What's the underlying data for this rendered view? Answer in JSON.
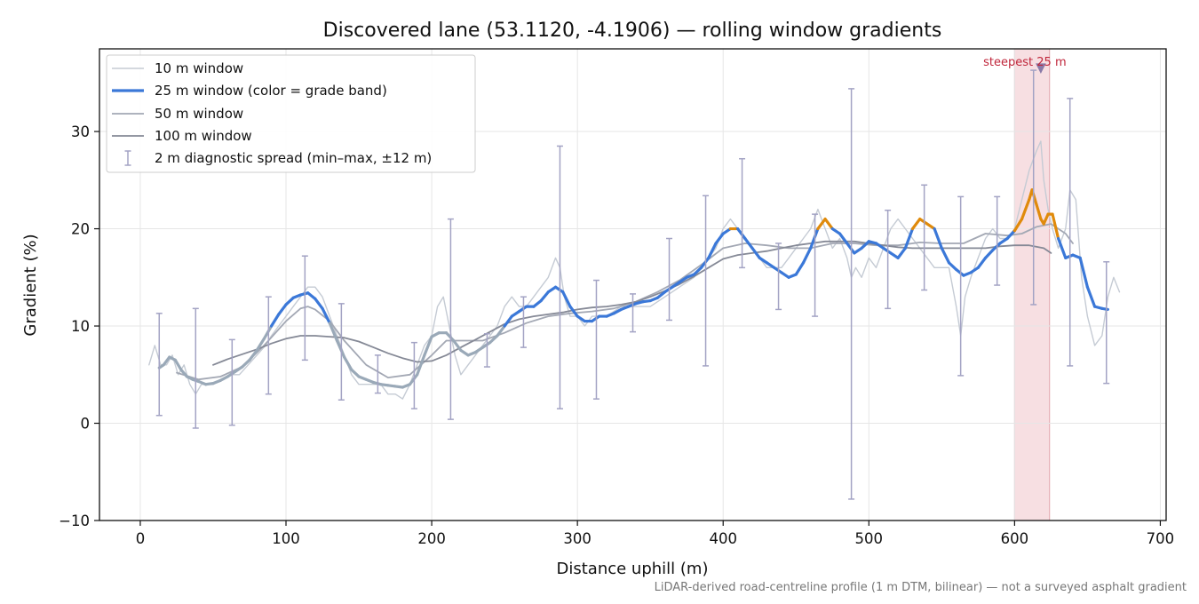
{
  "chart_data": {
    "type": "line",
    "title": "Discovered lane (53.1120, -4.1906) — rolling window gradients",
    "xlabel": "Distance uphill (m)",
    "ylabel": "Gradient (%)",
    "xlim": [
      -28,
      704
    ],
    "ylim": [
      -10,
      38.5
    ],
    "xticks": [
      0,
      100,
      200,
      300,
      400,
      500,
      600,
      700
    ],
    "yticks": [
      -10,
      0,
      10,
      20,
      30
    ],
    "grid": true,
    "legend_position": "top-left",
    "footnote": "LiDAR-derived road-centreline profile (1 m DTM, bilinear) — not a surveyed asphalt gradient",
    "highlight": {
      "x_range": [
        600,
        624
      ],
      "label": "steepest 25 m",
      "marker": [
        618,
        36.5
      ],
      "color": "#f4d4d8"
    },
    "legend": [
      {
        "label": "10 m window",
        "kind": "line",
        "color": "#c5cbd4",
        "width": 1.5
      },
      {
        "label": "25 m window (color = grade band)",
        "kind": "line",
        "color": "#3b78d8",
        "width": 3.2
      },
      {
        "label": "50 m window",
        "kind": "line",
        "color": "#a3a8b4",
        "width": 1.8
      },
      {
        "label": "100 m window",
        "kind": "line",
        "color": "#858996",
        "width": 1.8
      },
      {
        "label": "2 m diagnostic spread (min–max, ±12 m)",
        "kind": "errorbar",
        "color": "#a3a3c4",
        "width": 1.5
      }
    ],
    "band_colors": {
      "low": "#9aa9b8",
      "mid": "#3b78d8",
      "high": "#e08a0b"
    },
    "series": [
      {
        "name": "10 m window",
        "color": "#c5cbd4",
        "width": 1.4,
        "x": [
          6,
          10,
          14,
          18,
          22,
          26,
          30,
          34,
          38,
          42,
          46,
          50,
          56,
          62,
          68,
          74,
          80,
          86,
          90,
          95,
          100,
          105,
          110,
          115,
          120,
          125,
          130,
          135,
          140,
          145,
          150,
          155,
          160,
          165,
          170,
          175,
          180,
          185,
          190,
          195,
          200,
          204,
          208,
          212,
          216,
          220,
          225,
          230,
          235,
          240,
          245,
          250,
          255,
          260,
          265,
          270,
          275,
          280,
          285,
          288,
          291,
          295,
          300,
          305,
          310,
          315,
          320,
          330,
          340,
          350,
          360,
          370,
          380,
          390,
          395,
          400,
          405,
          410,
          415,
          420,
          425,
          430,
          435,
          440,
          445,
          450,
          455,
          460,
          465,
          470,
          475,
          480,
          485,
          488,
          491,
          495,
          500,
          505,
          510,
          515,
          520,
          525,
          530,
          535,
          540,
          545,
          550,
          555,
          560,
          563,
          566,
          570,
          575,
          580,
          585,
          590,
          595,
          600,
          605,
          610,
          615,
          618,
          620,
          623,
          626,
          630,
          635,
          638,
          642,
          646,
          650,
          655,
          660,
          664,
          668,
          672
        ],
        "y": [
          6,
          8,
          6,
          6,
          7,
          5,
          6,
          4,
          3,
          4,
          4,
          4,
          4.5,
          5,
          5,
          6,
          7,
          8,
          9,
          10,
          11,
          12,
          13,
          14,
          14,
          13,
          11,
          9,
          7,
          5,
          4,
          4,
          4,
          4,
          3,
          3,
          2.5,
          4,
          6,
          8,
          9,
          12,
          13,
          10,
          7,
          5,
          6,
          7,
          8,
          9,
          10,
          12,
          13,
          12,
          12,
          13,
          14,
          15,
          17,
          16,
          13,
          11,
          11,
          10,
          11,
          11,
          11,
          12,
          12,
          12,
          13,
          14,
          15,
          17,
          18,
          20,
          21,
          20,
          19,
          18,
          17,
          16,
          16,
          16,
          17,
          18,
          19,
          20,
          22,
          20,
          18,
          19,
          17,
          15,
          16,
          15,
          17,
          16,
          18,
          20,
          21,
          20,
          19,
          18,
          17,
          16,
          16,
          16,
          12,
          9,
          13,
          15,
          17,
          19,
          20,
          19,
          19,
          20,
          23,
          26,
          28,
          29,
          25,
          22,
          20,
          18,
          20,
          24,
          23,
          15,
          11,
          8,
          9,
          13,
          15,
          13.5
        ]
      },
      {
        "name": "25 m window",
        "color": "#3b78d8",
        "width": 3.2,
        "banded": true,
        "x": [
          13,
          16,
          20,
          24,
          28,
          32,
          36,
          40,
          45,
          50,
          55,
          60,
          65,
          70,
          75,
          80,
          85,
          90,
          95,
          100,
          105,
          110,
          115,
          120,
          125,
          130,
          135,
          140,
          145,
          150,
          155,
          160,
          165,
          170,
          175,
          180,
          185,
          190,
          195,
          200,
          205,
          210,
          215,
          220,
          225,
          230,
          235,
          240,
          245,
          250,
          255,
          260,
          265,
          270,
          275,
          280,
          285,
          290,
          295,
          300,
          305,
          310,
          315,
          320,
          325,
          330,
          335,
          340,
          345,
          350,
          355,
          360,
          365,
          370,
          375,
          380,
          385,
          390,
          395,
          400,
          405,
          410,
          415,
          420,
          425,
          430,
          435,
          440,
          445,
          450,
          455,
          460,
          465,
          470,
          475,
          480,
          485,
          490,
          495,
          500,
          505,
          510,
          515,
          520,
          525,
          530,
          535,
          540,
          545,
          550,
          555,
          560,
          565,
          570,
          575,
          580,
          585,
          590,
          595,
          600,
          605,
          610,
          612,
          615,
          618,
          620,
          623,
          626,
          630,
          635,
          640,
          645,
          650,
          655,
          660,
          664
        ],
        "y": [
          5.7,
          6,
          6.8,
          6.5,
          5.5,
          4.8,
          4.5,
          4.3,
          4,
          4.1,
          4.4,
          4.8,
          5.3,
          5.8,
          6.5,
          7.5,
          8.7,
          10,
          11.2,
          12.2,
          12.9,
          13.2,
          13.4,
          12.8,
          11.8,
          10.3,
          8.5,
          6.8,
          5.5,
          4.8,
          4.5,
          4.2,
          4,
          3.9,
          3.8,
          3.7,
          4,
          5,
          7,
          8.9,
          9.3,
          9.3,
          8.5,
          7.5,
          7,
          7.3,
          7.8,
          8.3,
          9,
          10,
          11,
          11.5,
          12,
          12,
          12.6,
          13.5,
          14,
          13.5,
          12,
          11,
          10.5,
          10.5,
          11,
          11,
          11.3,
          11.7,
          12,
          12.3,
          12.5,
          12.6,
          12.9,
          13.5,
          14,
          14.5,
          15,
          15.3,
          16,
          17,
          18.5,
          19.5,
          20,
          20,
          19,
          18,
          17,
          16.5,
          16,
          15.5,
          15,
          15.3,
          16.5,
          18,
          20,
          21,
          20,
          19.5,
          18.5,
          17.5,
          18,
          18.7,
          18.5,
          18,
          17.5,
          17,
          18,
          20,
          21,
          20.5,
          20,
          18,
          16.5,
          15.8,
          15.2,
          15.5,
          16,
          17,
          17.8,
          18.5,
          19,
          19.8,
          21,
          23,
          24,
          22.5,
          21,
          20.5,
          21.5,
          21.5,
          19,
          17,
          17.3,
          17,
          14,
          12,
          11.8,
          11.7
        ]
      },
      {
        "name": "50 m window",
        "color": "#a3a8b4",
        "width": 1.8,
        "x": [
          25,
          40,
          55,
          70,
          85,
          100,
          110,
          115,
          120,
          130,
          140,
          155,
          170,
          185,
          200,
          210,
          220,
          235,
          250,
          265,
          280,
          295,
          310,
          325,
          340,
          355,
          370,
          385,
          400,
          415,
          430,
          445,
          460,
          475,
          490,
          505,
          520,
          535,
          550,
          565,
          580,
          595,
          605,
          615,
          625,
          635,
          640
        ],
        "y": [
          5.2,
          4.5,
          4.8,
          5.8,
          8,
          10.5,
          11.8,
          12,
          11.7,
          10.5,
          8.5,
          6,
          4.7,
          5,
          7,
          8.5,
          8.5,
          8.5,
          9.3,
          10.3,
          11,
          11.3,
          11.5,
          11.8,
          12.5,
          13.5,
          14.7,
          16.3,
          18,
          18.5,
          18.3,
          18,
          18,
          18.5,
          18.5,
          18.3,
          18.3,
          18.6,
          18.5,
          18.5,
          19.5,
          19.3,
          19.5,
          20.2,
          20.5,
          19.5,
          18.5
        ]
      },
      {
        "name": "100 m window",
        "color": "#858996",
        "width": 1.8,
        "x": [
          50,
          60,
          70,
          80,
          90,
          100,
          110,
          120,
          130,
          140,
          150,
          160,
          170,
          180,
          190,
          200,
          210,
          220,
          230,
          240,
          250,
          260,
          270,
          280,
          290,
          300,
          310,
          320,
          330,
          340,
          350,
          360,
          370,
          380,
          390,
          400,
          410,
          420,
          430,
          440,
          450,
          460,
          470,
          480,
          490,
          500,
          510,
          520,
          530,
          540,
          550,
          560,
          570,
          580,
          590,
          600,
          610,
          620,
          625
        ],
        "y": [
          6,
          6.6,
          7.1,
          7.6,
          8.2,
          8.7,
          9,
          9,
          8.9,
          8.8,
          8.4,
          7.8,
          7.2,
          6.7,
          6.3,
          6.4,
          7,
          7.8,
          8.6,
          9.4,
          10.2,
          10.7,
          11,
          11.2,
          11.4,
          11.7,
          11.9,
          12,
          12.2,
          12.5,
          13,
          13.6,
          14.3,
          15.1,
          16,
          16.9,
          17.3,
          17.5,
          17.7,
          18,
          18.3,
          18.5,
          18.7,
          18.7,
          18.7,
          18.5,
          18.3,
          18.1,
          18,
          18,
          18,
          18,
          18,
          18,
          18.2,
          18.3,
          18.3,
          18,
          17.5
        ]
      }
    ],
    "errorbars": {
      "name": "2 m diagnostic spread (min–max, ±12 m)",
      "color": "#a3a3c4",
      "items": [
        {
          "x": 13,
          "min": 0.8,
          "max": 11.3
        },
        {
          "x": 38,
          "min": -0.5,
          "max": 11.8
        },
        {
          "x": 63,
          "min": -0.2,
          "max": 8.6
        },
        {
          "x": 88,
          "min": 3,
          "max": 13
        },
        {
          "x": 113,
          "min": 6.5,
          "max": 17.2
        },
        {
          "x": 138,
          "min": 2.4,
          "max": 12.3
        },
        {
          "x": 163,
          "min": 3.1,
          "max": 7
        },
        {
          "x": 188,
          "min": 1.5,
          "max": 8.3
        },
        {
          "x": 213,
          "min": 0.4,
          "max": 21
        },
        {
          "x": 238,
          "min": 5.8,
          "max": 9.2
        },
        {
          "x": 263,
          "min": 7.8,
          "max": 13
        },
        {
          "x": 288,
          "min": 1.5,
          "max": 28.5
        },
        {
          "x": 313,
          "min": 2.5,
          "max": 14.7
        },
        {
          "x": 338,
          "min": 9.4,
          "max": 13.3
        },
        {
          "x": 363,
          "min": 10.6,
          "max": 19
        },
        {
          "x": 388,
          "min": 5.9,
          "max": 23.4
        },
        {
          "x": 413,
          "min": 16,
          "max": 27.2
        },
        {
          "x": 438,
          "min": 11.7,
          "max": 18.5
        },
        {
          "x": 463,
          "min": 11,
          "max": 21.5
        },
        {
          "x": 488,
          "min": -7.8,
          "max": 34.4
        },
        {
          "x": 513,
          "min": 11.8,
          "max": 21.9
        },
        {
          "x": 538,
          "min": 13.7,
          "max": 24.5
        },
        {
          "x": 563,
          "min": 4.9,
          "max": 23.3
        },
        {
          "x": 588,
          "min": 14.2,
          "max": 23.3
        },
        {
          "x": 613,
          "min": 12.2,
          "max": 36.3
        },
        {
          "x": 638,
          "min": 5.9,
          "max": 33.4
        },
        {
          "x": 663,
          "min": 4.1,
          "max": 16.6
        }
      ]
    }
  }
}
